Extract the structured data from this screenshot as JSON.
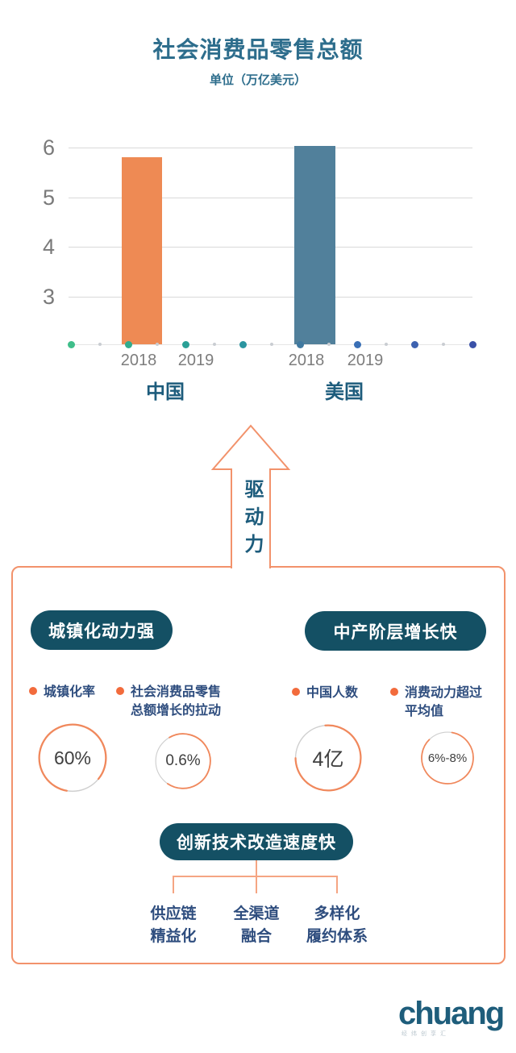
{
  "chart_data": {
    "type": "bar",
    "title": "社会消费品零售总额",
    "unit_label": "单位（万亿美元）",
    "categories": [
      "中国",
      "美国"
    ],
    "groups": [
      {
        "country": "中国",
        "year_labels": [
          "2018",
          "2019"
        ],
        "values": [
          5.8,
          null
        ],
        "bar_color": "#EE8A54"
      },
      {
        "country": "美国",
        "year_labels": [
          "2018",
          "2019"
        ],
        "values": [
          6.03,
          null
        ],
        "bar_color": "#51809B"
      }
    ],
    "y_ticks": [
      6,
      5,
      4,
      3
    ],
    "ylim": [
      2,
      6.2
    ],
    "grid": true,
    "legend_position": "none",
    "baseline_dot_colors": [
      "#3FBE8A",
      "#30AC8D",
      "#2AA096",
      "#2B95A0",
      "#4079A0",
      "#3A6FB5",
      "#3D62B0",
      "#3A51A8"
    ],
    "small_dot_color": "#C9CDD2"
  },
  "arrow": {
    "label": "驱动力",
    "color": "#F2926B"
  },
  "drivers": {
    "urbanization": {
      "heading": "城镇化动力强",
      "stats": [
        {
          "legend": "城镇化率",
          "value": "60%"
        },
        {
          "legend": "社会消费品零售\n总额增长的拉动",
          "value": "0.6%"
        }
      ]
    },
    "middle_class": {
      "heading": "中产阶层增长快",
      "stats": [
        {
          "legend": "中国人数",
          "value": "4亿"
        },
        {
          "legend": "消费动力超过\n平均值",
          "value": "6%-8%"
        }
      ]
    },
    "innovation": {
      "heading": "创新技术改造速度快",
      "items": [
        {
          "label": "供应链\n精益化"
        },
        {
          "label": "全渠道\n融合"
        },
        {
          "label": "多样化\n履约体系"
        }
      ]
    }
  },
  "logo": {
    "text": "chuang",
    "subtext": "经纬创享汇"
  },
  "colors": {
    "title": "#2D6D8C",
    "country_label": "#1D5C7C",
    "pill_bg": "#145064",
    "accent_orange": "#F2926B",
    "bullet_orange": "#F26B3C",
    "legend_text": "#2E4D7E",
    "axis_text": "#7A7A7A"
  }
}
